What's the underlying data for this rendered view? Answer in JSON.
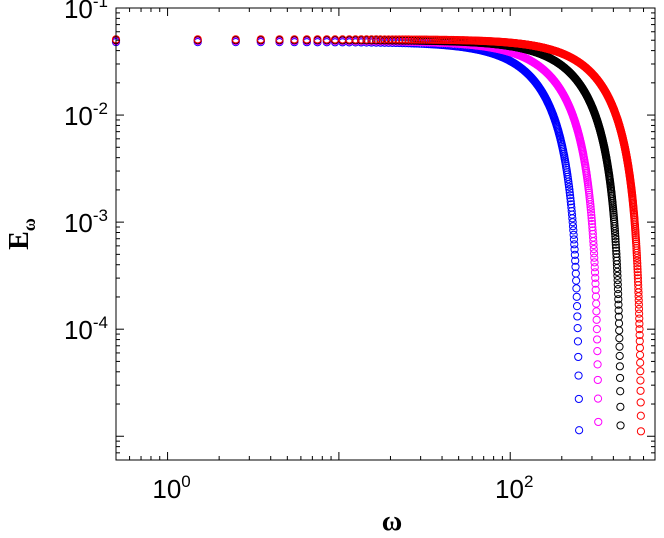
{
  "chart_data": {
    "type": "scatter",
    "title": "",
    "xlabel": "ω",
    "ylabel": "E",
    "ylabel_subscript": "ω",
    "xscale": "log",
    "yscale": "log",
    "xlim": [
      0.5,
      700
    ],
    "ylim": [
      6e-06,
      0.1
    ],
    "grid": false,
    "legend": "none",
    "marker": "open-circle",
    "x_ticks": [
      {
        "value": 1,
        "base": "10",
        "exp": "0"
      },
      {
        "value": 100,
        "base": "10",
        "exp": "2"
      }
    ],
    "y_ticks": [
      {
        "value": 0.1,
        "base": "10",
        "exp": "-1"
      },
      {
        "value": 0.01,
        "base": "10",
        "exp": "-2"
      },
      {
        "value": 0.001,
        "base": "10",
        "exp": "-3"
      },
      {
        "value": 0.0001,
        "base": "10",
        "exp": "-4"
      }
    ],
    "series": [
      {
        "color": "#0000ff",
        "peak": 0.048,
        "omega_max": 255
      },
      {
        "color": "#ff00ff",
        "peak": 0.049,
        "omega_max": 330
      },
      {
        "color": "#000000",
        "peak": 0.05,
        "omega_max": 445
      },
      {
        "color": "#ff0000",
        "peak": 0.051,
        "omega_max": 585
      }
    ]
  }
}
